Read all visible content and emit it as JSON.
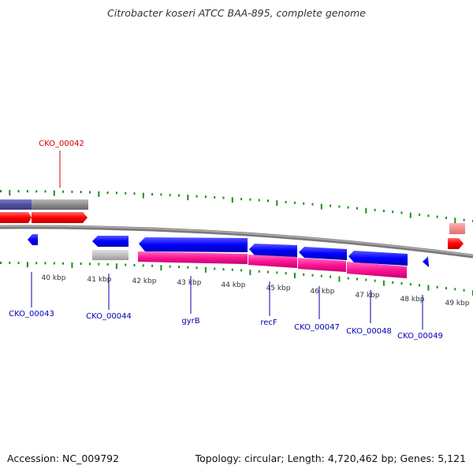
{
  "title": "Citrobacter koseri ATCC BAA-895, complete genome",
  "footer": {
    "accession": "Accession: NC_009792",
    "summary": "Topology: circular; Length: 4,720,462 bp; Genes: 5,121"
  },
  "colors": {
    "cds_forward": "#ff0000",
    "cds_reverse": "#0000ff",
    "pseudo": "#a0a0a0",
    "rna": "#ff1493",
    "tick": "#1a8f1a",
    "backbone": "#808080",
    "label_forward": "#d00000",
    "label_reverse": "#0000b0",
    "text": "#333333"
  },
  "scale": {
    "labels": [
      "40 kbp",
      "41 kbp",
      "42 kbp",
      "43 kbp",
      "44 kbp",
      "45 kbp",
      "46 kbp",
      "47 kbp",
      "48 kbp",
      "49 kbp"
    ]
  },
  "feature_labels": [
    {
      "text": "CKO_00042",
      "strand": "forward"
    },
    {
      "text": "CKO_00043",
      "strand": "reverse"
    },
    {
      "text": "CKO_00044",
      "strand": "reverse"
    },
    {
      "text": "gyrB",
      "strand": "reverse"
    },
    {
      "text": "recF",
      "strand": "reverse"
    },
    {
      "text": "CKO_00047",
      "strand": "reverse"
    },
    {
      "text": "CKO_00048",
      "strand": "reverse"
    },
    {
      "text": "CKO_00049",
      "strand": "reverse"
    }
  ]
}
